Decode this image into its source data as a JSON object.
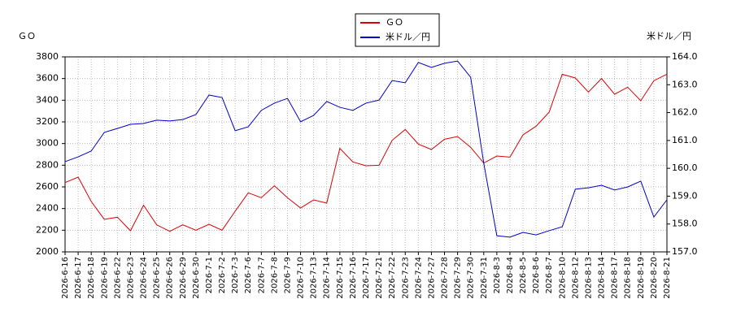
{
  "chart_data": {
    "type": "line",
    "y_label": "ＧＯ",
    "y2_label": "米ドル／円",
    "categories": [
      "2026-6-16",
      "2026-6-17",
      "2026-6-18",
      "2026-6-19",
      "2026-6-22",
      "2026-6-23",
      "2026-6-24",
      "2026-6-25",
      "2026-6-26",
      "2026-6-29",
      "2026-6-30",
      "2026-7-1",
      "2026-7-2",
      "2026-7-3",
      "2026-7-6",
      "2026-7-7",
      "2026-7-8",
      "2026-7-9",
      "2026-7-10",
      "2026-7-13",
      "2026-7-14",
      "2026-7-15",
      "2026-7-16",
      "2026-7-17",
      "2026-7-21",
      "2026-7-22",
      "2026-7-23",
      "2026-7-24",
      "2026-7-27",
      "2026-7-28",
      "2026-7-29",
      "2026-7-30",
      "2026-7-31",
      "2026-8-3",
      "2026-8-4",
      "2026-8-5",
      "2026-8-6",
      "2026-8-7",
      "2026-8-10",
      "2026-8-12",
      "2026-8-13",
      "2026-8-14",
      "2026-8-17",
      "2026-8-18",
      "2026-8-19",
      "2026-8-20",
      "2026-8-21"
    ],
    "series": [
      {
        "name": "ＧＯ",
        "color": "#dd0000",
        "axis": "y",
        "values": [
          2640,
          2690,
          2465,
          2300,
          2320,
          2195,
          2430,
          2250,
          2190,
          2250,
          2200,
          2255,
          2200,
          2375,
          2545,
          2500,
          2610,
          2500,
          2405,
          2480,
          2450,
          2955,
          2830,
          2795,
          2800,
          3030,
          3130,
          2995,
          2945,
          3040,
          3065,
          2965,
          2820,
          2885,
          2875,
          3080,
          3160,
          3290,
          3640,
          3605,
          3475,
          3600,
          3455,
          3520,
          3395,
          3580,
          3640
        ]
      },
      {
        "name": "米ドル／円",
        "color": "#0000cc",
        "axis": "y2",
        "values": [
          160.24,
          160.41,
          160.62,
          161.29,
          161.43,
          161.58,
          161.61,
          161.73,
          161.7,
          161.75,
          161.93,
          162.63,
          162.54,
          161.35,
          161.49,
          162.08,
          162.34,
          162.51,
          161.67,
          161.9,
          162.4,
          162.19,
          162.08,
          162.34,
          162.45,
          163.15,
          163.07,
          163.8,
          163.62,
          163.77,
          163.85,
          163.27,
          160.18,
          157.58,
          157.53,
          157.7,
          157.61,
          157.76,
          157.9,
          159.25,
          159.3,
          159.39,
          159.22,
          159.33,
          159.54,
          158.25,
          158.87
        ]
      }
    ],
    "ylim": [
      2000,
      3800
    ],
    "yticks": [
      2000,
      2200,
      2400,
      2600,
      2800,
      3000,
      3200,
      3400,
      3600,
      3800
    ],
    "y2lim": [
      157,
      164
    ],
    "y2ticks": [
      {
        "value": 157,
        "label": "157.0"
      },
      {
        "value": 158,
        "label": "158.0"
      },
      {
        "value": 159,
        "label": "159.0"
      },
      {
        "value": 160,
        "label": "160.0"
      },
      {
        "value": 161,
        "label": "161.0"
      },
      {
        "value": 162,
        "label": "162.0"
      },
      {
        "value": 163,
        "label": "163.0"
      },
      {
        "value": 164,
        "label": "164.0"
      }
    ],
    "grid": true
  }
}
